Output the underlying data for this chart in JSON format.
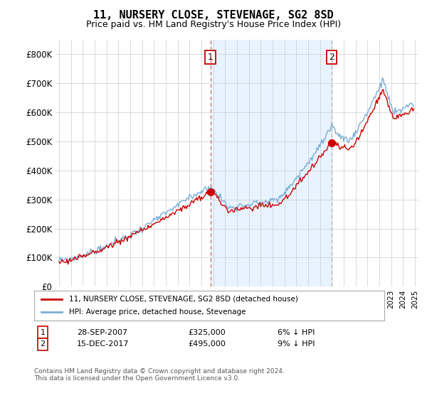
{
  "title": "11, NURSERY CLOSE, STEVENAGE, SG2 8SD",
  "subtitle": "Price paid vs. HM Land Registry's House Price Index (HPI)",
  "ylim": [
    0,
    850000
  ],
  "yticks": [
    0,
    100000,
    200000,
    300000,
    400000,
    500000,
    600000,
    700000,
    800000
  ],
  "ytick_labels": [
    "£0",
    "£100K",
    "£200K",
    "£300K",
    "£400K",
    "£500K",
    "£600K",
    "£700K",
    "£800K"
  ],
  "red_line_label": "11, NURSERY CLOSE, STEVENAGE, SG2 8SD (detached house)",
  "blue_line_label": "HPI: Average price, detached house, Stevenage",
  "annotation1_date": "28-SEP-2007",
  "annotation1_price": "£325,000",
  "annotation1_diff": "6% ↓ HPI",
  "annotation2_date": "15-DEC-2017",
  "annotation2_price": "£495,000",
  "annotation2_diff": "9% ↓ HPI",
  "footer": "Contains HM Land Registry data © Crown copyright and database right 2024.\nThis data is licensed under the Open Government Licence v3.0.",
  "sale1_year": 2007.75,
  "sale1_price": 325000,
  "sale2_year": 2017.96,
  "sale2_price": 495000,
  "red_color": "#cc0000",
  "blue_color": "#7aadd4",
  "shade_color": "#ddeeff",
  "vline_color": "#cc6666",
  "background_color": "#ffffff",
  "grid_color": "#cccccc"
}
